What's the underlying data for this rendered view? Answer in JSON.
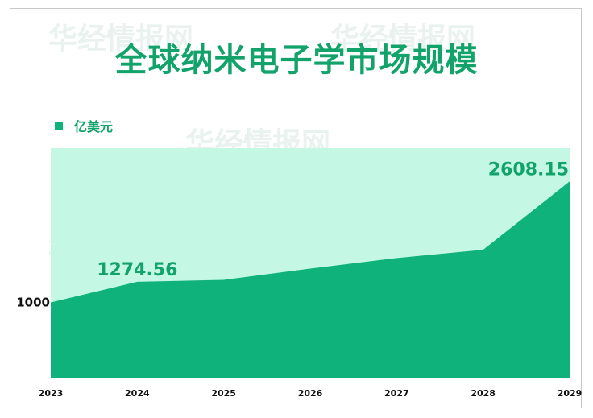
{
  "title": "全球纳米电子学市场规模",
  "legend": {
    "label": "亿美元"
  },
  "colors": {
    "fill": "#0fb27b",
    "background": "#c5f7e5",
    "title": "#12a36a",
    "watermark": "#e9f2ee"
  },
  "watermark_text": "华经情报网",
  "chart_data": {
    "type": "area",
    "title": "全球纳米电子学市场规模",
    "series": [
      {
        "name": "亿美元",
        "values": [
          1000,
          1274.56,
          1300,
          1450,
          1590,
          1700,
          2608.15
        ]
      }
    ],
    "categories": [
      "2023",
      "2024",
      "2025",
      "2026",
      "2027",
      "2028",
      "2029"
    ],
    "ylim": [
      0,
      3050
    ],
    "yticks": [
      1000
    ],
    "ytick_labels": [
      "1000"
    ],
    "data_labels": [
      {
        "index": 1,
        "text": "1274.56"
      },
      {
        "index": 6,
        "text": "2608.15"
      }
    ],
    "xlabel": "",
    "ylabel": "",
    "grid": false,
    "legend_position": "top-left"
  }
}
